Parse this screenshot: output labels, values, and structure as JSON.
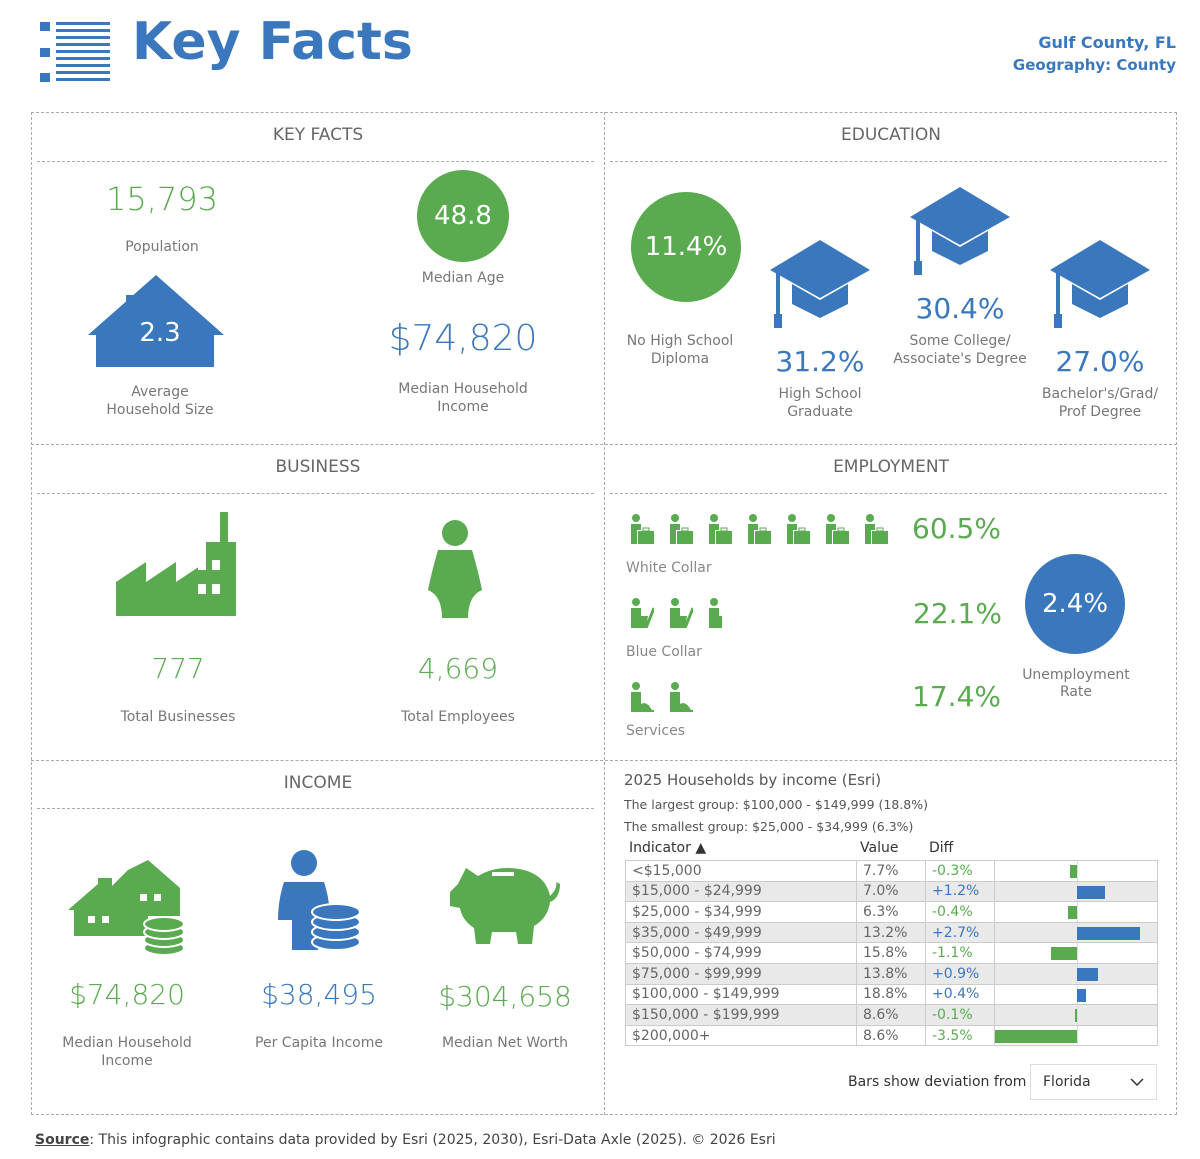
{
  "header": {
    "title": "Key Facts",
    "geo_name": "Gulf County, FL",
    "geo_level": "Geography: County"
  },
  "colors": {
    "blue": "#3a77bd",
    "green": "#5aab4f"
  },
  "key_facts": {
    "heading": "KEY FACTS",
    "population": "15,793",
    "population_label": "Population",
    "median_age": "48.8",
    "median_age_label": "Median Age",
    "household_size": "2.3",
    "household_size_label1": "Average",
    "household_size_label2": "Household Size",
    "median_income": "$74,820",
    "median_income_label1": "Median Household",
    "median_income_label2": "Income"
  },
  "education": {
    "heading": "EDUCATION",
    "items": [
      {
        "value": "11.4%",
        "label1": "No High School",
        "label2": "Diploma"
      },
      {
        "value": "31.2%",
        "label1": "High School",
        "label2": "Graduate"
      },
      {
        "value": "30.4%",
        "label1": "Some College/",
        "label2": "Associate's Degree"
      },
      {
        "value": "27.0%",
        "label1": "Bachelor's/Grad/",
        "label2": "Prof Degree"
      }
    ]
  },
  "business": {
    "heading": "BUSINESS",
    "businesses": "777",
    "businesses_label": "Total Businesses",
    "employees": "4,669",
    "employees_label": "Total Employees"
  },
  "employment": {
    "heading": "EMPLOYMENT",
    "white_collar": "60.5%",
    "white_collar_label": "White Collar",
    "blue_collar": "22.1%",
    "blue_collar_label": "Blue Collar",
    "services": "17.4%",
    "services_label": "Services",
    "unemployment": "2.4%",
    "unemployment_label1": "Unemployment",
    "unemployment_label2": "Rate"
  },
  "income": {
    "heading": "INCOME",
    "median_hh": "$74,820",
    "median_hh_label1": "Median Household",
    "median_hh_label2": "Income",
    "per_capita": "$38,495",
    "per_capita_label": "Per Capita Income",
    "net_worth": "$304,658",
    "net_worth_label": "Median Net Worth"
  },
  "households": {
    "title": "2025 Households by income (Esri)",
    "largest": "The largest group: $100,000 - $149,999 (18.8%)",
    "smallest": "The smallest group: $25,000 - $34,999 (6.3%)",
    "columns": {
      "indicator": "Indicator ▲",
      "value": "Value",
      "diff": "Diff"
    },
    "rows": [
      {
        "indicator": "<$15,000",
        "value": "7.7%",
        "diff": "-0.3%",
        "d": -0.3
      },
      {
        "indicator": "$15,000 - $24,999",
        "value": "7.0%",
        "diff": "+1.2%",
        "d": 1.2
      },
      {
        "indicator": "$25,000 - $34,999",
        "value": "6.3%",
        "diff": "-0.4%",
        "d": -0.4
      },
      {
        "indicator": "$35,000 - $49,999",
        "value": "13.2%",
        "diff": "+2.7%",
        "d": 2.7
      },
      {
        "indicator": "$50,000 - $74,999",
        "value": "15.8%",
        "diff": "-1.1%",
        "d": -1.1
      },
      {
        "indicator": "$75,000 - $99,999",
        "value": "13.8%",
        "diff": "+0.9%",
        "d": 0.9
      },
      {
        "indicator": "$100,000 - $149,999",
        "value": "18.8%",
        "diff": "+0.4%",
        "d": 0.4
      },
      {
        "indicator": "$150,000 - $199,999",
        "value": "8.6%",
        "diff": "-0.1%",
        "d": -0.1
      },
      {
        "indicator": "$200,000+",
        "value": "8.6%",
        "diff": "-3.5%",
        "d": -3.5
      }
    ],
    "deviation_label": "Bars show deviation from",
    "deviation_select": "Florida"
  },
  "footer": {
    "source_label": "Source",
    "source_text": ": This infographic contains data provided by Esri (2025, 2030), Esri-Data Axle (2025). © 2026 Esri"
  }
}
